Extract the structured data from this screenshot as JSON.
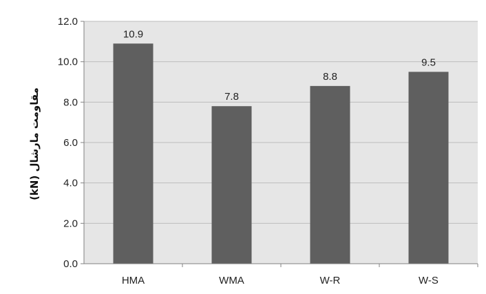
{
  "chart_data": {
    "type": "bar",
    "title": "",
    "xlabel": "",
    "ylabel": "مقاومت مارشال (kN)",
    "categories": [
      "HMA",
      "WMA",
      "W-R",
      "W-S"
    ],
    "values": [
      10.9,
      7.8,
      8.8,
      9.5
    ],
    "data_labels": [
      "10.9",
      "7.8",
      "8.8",
      "9.5"
    ],
    "ylim": [
      0,
      12
    ],
    "yticks": [
      0,
      2,
      4,
      6,
      8,
      10,
      12
    ],
    "ytick_labels": [
      "0.0",
      "2.0",
      "4.0",
      "6.0",
      "8.0",
      "10.0",
      "12.0"
    ],
    "grid": true,
    "legend": "none",
    "colors": {
      "bar": "#5f5f5f",
      "plot_background": "#e6e6e6",
      "gridline": "#bcbcbc",
      "axis": "#808080"
    }
  }
}
